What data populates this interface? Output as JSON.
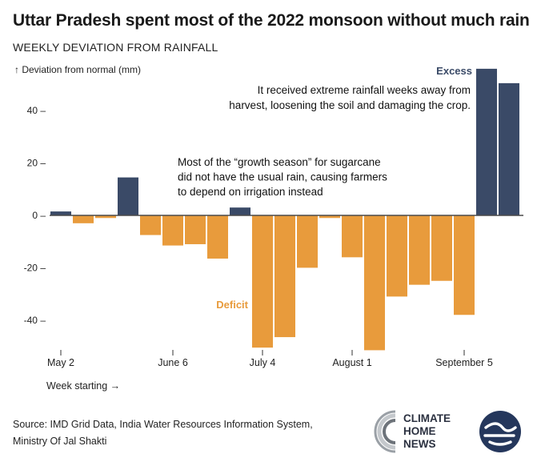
{
  "header": {
    "title": "Uttar Pradesh spent most of the 2022 monsoon without much rain",
    "subtitle": "WEEKLY DEVIATION FROM RAINFALL"
  },
  "chart_data": {
    "type": "bar",
    "ylabel": "↑ Deviation from normal (mm)",
    "xlabel": "Week starting →",
    "ylim": [
      -51,
      55
    ],
    "yticks": [
      40,
      20,
      0,
      -20,
      -40
    ],
    "ytick_labels": [
      "40 –",
      "20 –",
      "0 –",
      "-20 –",
      "-40 –"
    ],
    "xtick_labels": [
      {
        "label": "May 2",
        "week": 0
      },
      {
        "label": "June 6",
        "week": 5
      },
      {
        "label": "July 4",
        "week": 9
      },
      {
        "label": "August 1",
        "week": 13
      },
      {
        "label": "September 5",
        "week": 18
      }
    ],
    "values": [
      1.5,
      -3,
      -1,
      14.5,
      -7.5,
      -11.5,
      -11,
      -16.5,
      3,
      -50.5,
      -46.5,
      -20,
      -1,
      -16,
      -51.5,
      -31,
      -26.5,
      -25,
      -38,
      56,
      50.5
    ],
    "colors": {
      "excess": "#3a4a67",
      "deficit": "#e89b3c",
      "zero_line": "#4a4a4a",
      "annotation_excess": "#3a4a67",
      "annotation_deficit": "#e89b3c"
    },
    "labels": {
      "excess": "Excess",
      "deficit": "Deficit"
    },
    "annotations": [
      {
        "lines": [
          "It received extreme rainfall weeks away from",
          "harvest, loosening the soil and damaging the crop."
        ]
      },
      {
        "lines": [
          "Most of the “growth season” for sugarcane",
          "did not have the usual rain, causing farmers",
          "to depend on irrigation instead"
        ]
      }
    ]
  },
  "footer": {
    "source_line1": "Source: IMD Grid Data, India Water Resources Information System,",
    "source_line2": "Ministry Of Jal Shakti",
    "logo_text_1": "CLIMATE",
    "logo_text_2": "HOME",
    "logo_text_3": "NEWS"
  }
}
